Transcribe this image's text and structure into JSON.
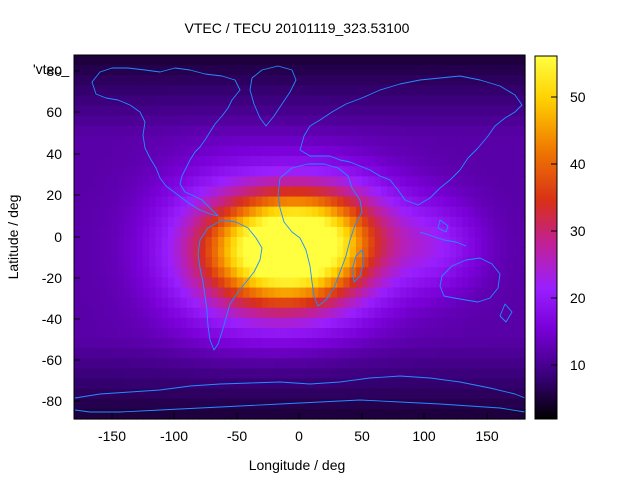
{
  "chart_data": {
    "type": "heatmap",
    "title": "VTEC / TECU 20101119_323.53100",
    "xlabel": "Longitude / deg",
    "ylabel": "Latitude / deg",
    "xlim": [
      -180,
      180
    ],
    "ylim": [
      -90,
      90
    ],
    "xticks": [
      "-150",
      "-100",
      "-50",
      "0",
      "50",
      "100",
      "150"
    ],
    "yticks": [
      "80",
      "60",
      "40",
      "20",
      "0",
      "-20",
      "-40",
      "-60",
      "-80"
    ],
    "colorbar": {
      "min": 2,
      "max": 56,
      "ticks": [
        "50",
        "40",
        "30",
        "20",
        "10"
      ]
    },
    "legend_entry": "'vtec_",
    "grid_step_deg": 5,
    "field": {
      "background_level": 12,
      "polar_dark_level": 5,
      "enhancements": [
        {
          "lon": -5,
          "lat": -10,
          "amplitude": 40,
          "sigma_lon": 45,
          "sigma_lat": 20
        },
        {
          "lon": 15,
          "lat": 5,
          "amplitude": 18,
          "sigma_lon": 45,
          "sigma_lat": 18
        },
        {
          "lon": -60,
          "lat": -5,
          "amplitude": 12,
          "sigma_lon": 40,
          "sigma_lat": 25
        },
        {
          "lon": 110,
          "lat": -5,
          "amplitude": 8,
          "sigma_lon": 25,
          "sigma_lat": 15
        }
      ]
    },
    "coastline_color": "#1e90ff",
    "palette": [
      "#000000",
      "#3a007a",
      "#7a00d8",
      "#9a1fff",
      "#c0209a",
      "#d83018",
      "#f07800",
      "#ffd000",
      "#ffff40"
    ]
  }
}
